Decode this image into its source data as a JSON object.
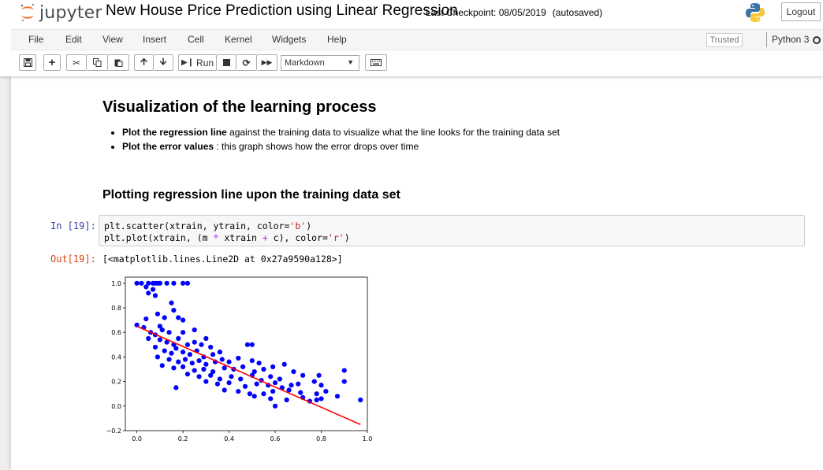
{
  "header": {
    "logo_text": "jupyter",
    "notebook_name": "New House Price Prediction using Linear Regression",
    "checkpoint": "Last Checkpoint: 08/05/2019",
    "save_status": "(autosaved)",
    "logout": "Logout"
  },
  "menubar": {
    "items": [
      "File",
      "Edit",
      "View",
      "Insert",
      "Cell",
      "Kernel",
      "Widgets",
      "Help"
    ],
    "trusted": "Trusted",
    "kernel": "Python 3"
  },
  "toolbar": {
    "run_label": "Run",
    "cell_type": "Markdown"
  },
  "notebook": {
    "heading": "Visualization of the learning process",
    "bullets": [
      {
        "bold": "Plot the regression line",
        "rest": " against the training data to visualize what the line looks for the training data set"
      },
      {
        "bold": "Plot the error values",
        "rest": " : this graph shows how the error drops over time"
      }
    ],
    "subheading": "Plotting regression line upon the training data set",
    "in_prompt": "In [19]:",
    "out_prompt": "Out[19]:",
    "output_text": "[<matplotlib.lines.Line2D at 0x27a9590a128>]"
  },
  "chart_data": {
    "type": "scatter",
    "xlim": [
      -0.05,
      1.0
    ],
    "ylim": [
      -0.2,
      1.05
    ],
    "xticks": [
      "0.0",
      "0.2",
      "0.4",
      "0.6",
      "0.8",
      "1.0"
    ],
    "yticks": [
      "-0.2",
      "0.0",
      "0.2",
      "0.4",
      "0.6",
      "0.8",
      "1.0"
    ],
    "scatter_color": "#0000ff",
    "line_color": "#ff0000",
    "line": {
      "x": [
        0.0,
        0.97
      ],
      "y": [
        0.65,
        -0.15
      ]
    },
    "points": [
      [
        0.0,
        1.0
      ],
      [
        0.02,
        1.0
      ],
      [
        0.05,
        1.0
      ],
      [
        0.07,
        1.0
      ],
      [
        0.08,
        1.0
      ],
      [
        0.09,
        1.0
      ],
      [
        0.1,
        1.0
      ],
      [
        0.13,
        1.0
      ],
      [
        0.16,
        1.0
      ],
      [
        0.2,
        1.0
      ],
      [
        0.22,
        1.0
      ],
      [
        0.04,
        0.97
      ],
      [
        0.07,
        0.95
      ],
      [
        0.05,
        0.92
      ],
      [
        0.08,
        0.9
      ],
      [
        0.15,
        0.84
      ],
      [
        0.16,
        0.78
      ],
      [
        0.09,
        0.75
      ],
      [
        0.12,
        0.72
      ],
      [
        0.18,
        0.72
      ],
      [
        0.2,
        0.7
      ],
      [
        0.04,
        0.71
      ],
      [
        0.1,
        0.65
      ],
      [
        0.11,
        0.62
      ],
      [
        0.14,
        0.6
      ],
      [
        0.2,
        0.6
      ],
      [
        0.25,
        0.62
      ],
      [
        0.0,
        0.66
      ],
      [
        0.03,
        0.64
      ],
      [
        0.06,
        0.6
      ],
      [
        0.08,
        0.58
      ],
      [
        0.05,
        0.55
      ],
      [
        0.1,
        0.54
      ],
      [
        0.13,
        0.52
      ],
      [
        0.16,
        0.5
      ],
      [
        0.18,
        0.55
      ],
      [
        0.22,
        0.5
      ],
      [
        0.25,
        0.52
      ],
      [
        0.28,
        0.5
      ],
      [
        0.32,
        0.48
      ],
      [
        0.3,
        0.55
      ],
      [
        0.08,
        0.48
      ],
      [
        0.12,
        0.45
      ],
      [
        0.15,
        0.43
      ],
      [
        0.17,
        0.47
      ],
      [
        0.2,
        0.44
      ],
      [
        0.23,
        0.42
      ],
      [
        0.26,
        0.45
      ],
      [
        0.29,
        0.4
      ],
      [
        0.33,
        0.42
      ],
      [
        0.36,
        0.44
      ],
      [
        0.48,
        0.5
      ],
      [
        0.5,
        0.5
      ],
      [
        0.09,
        0.4
      ],
      [
        0.14,
        0.38
      ],
      [
        0.18,
        0.36
      ],
      [
        0.21,
        0.38
      ],
      [
        0.24,
        0.35
      ],
      [
        0.27,
        0.37
      ],
      [
        0.3,
        0.34
      ],
      [
        0.34,
        0.36
      ],
      [
        0.37,
        0.38
      ],
      [
        0.4,
        0.36
      ],
      [
        0.44,
        0.39
      ],
      [
        0.5,
        0.37
      ],
      [
        0.53,
        0.35
      ],
      [
        0.11,
        0.33
      ],
      [
        0.16,
        0.31
      ],
      [
        0.2,
        0.32
      ],
      [
        0.25,
        0.29
      ],
      [
        0.29,
        0.3
      ],
      [
        0.33,
        0.28
      ],
      [
        0.38,
        0.31
      ],
      [
        0.42,
        0.3
      ],
      [
        0.46,
        0.32
      ],
      [
        0.51,
        0.28
      ],
      [
        0.55,
        0.3
      ],
      [
        0.59,
        0.32
      ],
      [
        0.64,
        0.34
      ],
      [
        0.22,
        0.26
      ],
      [
        0.27,
        0.24
      ],
      [
        0.32,
        0.25
      ],
      [
        0.36,
        0.22
      ],
      [
        0.41,
        0.24
      ],
      [
        0.45,
        0.22
      ],
      [
        0.5,
        0.25
      ],
      [
        0.54,
        0.21
      ],
      [
        0.58,
        0.24
      ],
      [
        0.62,
        0.22
      ],
      [
        0.68,
        0.28
      ],
      [
        0.72,
        0.25
      ],
      [
        0.79,
        0.25
      ],
      [
        0.3,
        0.2
      ],
      [
        0.35,
        0.18
      ],
      [
        0.4,
        0.19
      ],
      [
        0.47,
        0.16
      ],
      [
        0.52,
        0.18
      ],
      [
        0.57,
        0.17
      ],
      [
        0.6,
        0.19
      ],
      [
        0.63,
        0.15
      ],
      [
        0.67,
        0.17
      ],
      [
        0.7,
        0.18
      ],
      [
        0.77,
        0.2
      ],
      [
        0.8,
        0.17
      ],
      [
        0.9,
        0.2
      ],
      [
        0.9,
        0.29
      ],
      [
        0.17,
        0.15
      ],
      [
        0.38,
        0.13
      ],
      [
        0.44,
        0.12
      ],
      [
        0.49,
        0.1
      ],
      [
        0.55,
        0.1
      ],
      [
        0.59,
        0.12
      ],
      [
        0.66,
        0.13
      ],
      [
        0.71,
        0.11
      ],
      [
        0.78,
        0.1
      ],
      [
        0.82,
        0.12
      ],
      [
        0.51,
        0.08
      ],
      [
        0.58,
        0.06
      ],
      [
        0.65,
        0.05
      ],
      [
        0.72,
        0.07
      ],
      [
        0.8,
        0.06
      ],
      [
        0.87,
        0.08
      ],
      [
        0.97,
        0.05
      ],
      [
        0.6,
        0.0
      ],
      [
        0.75,
        0.04
      ],
      [
        0.78,
        0.05
      ]
    ]
  }
}
